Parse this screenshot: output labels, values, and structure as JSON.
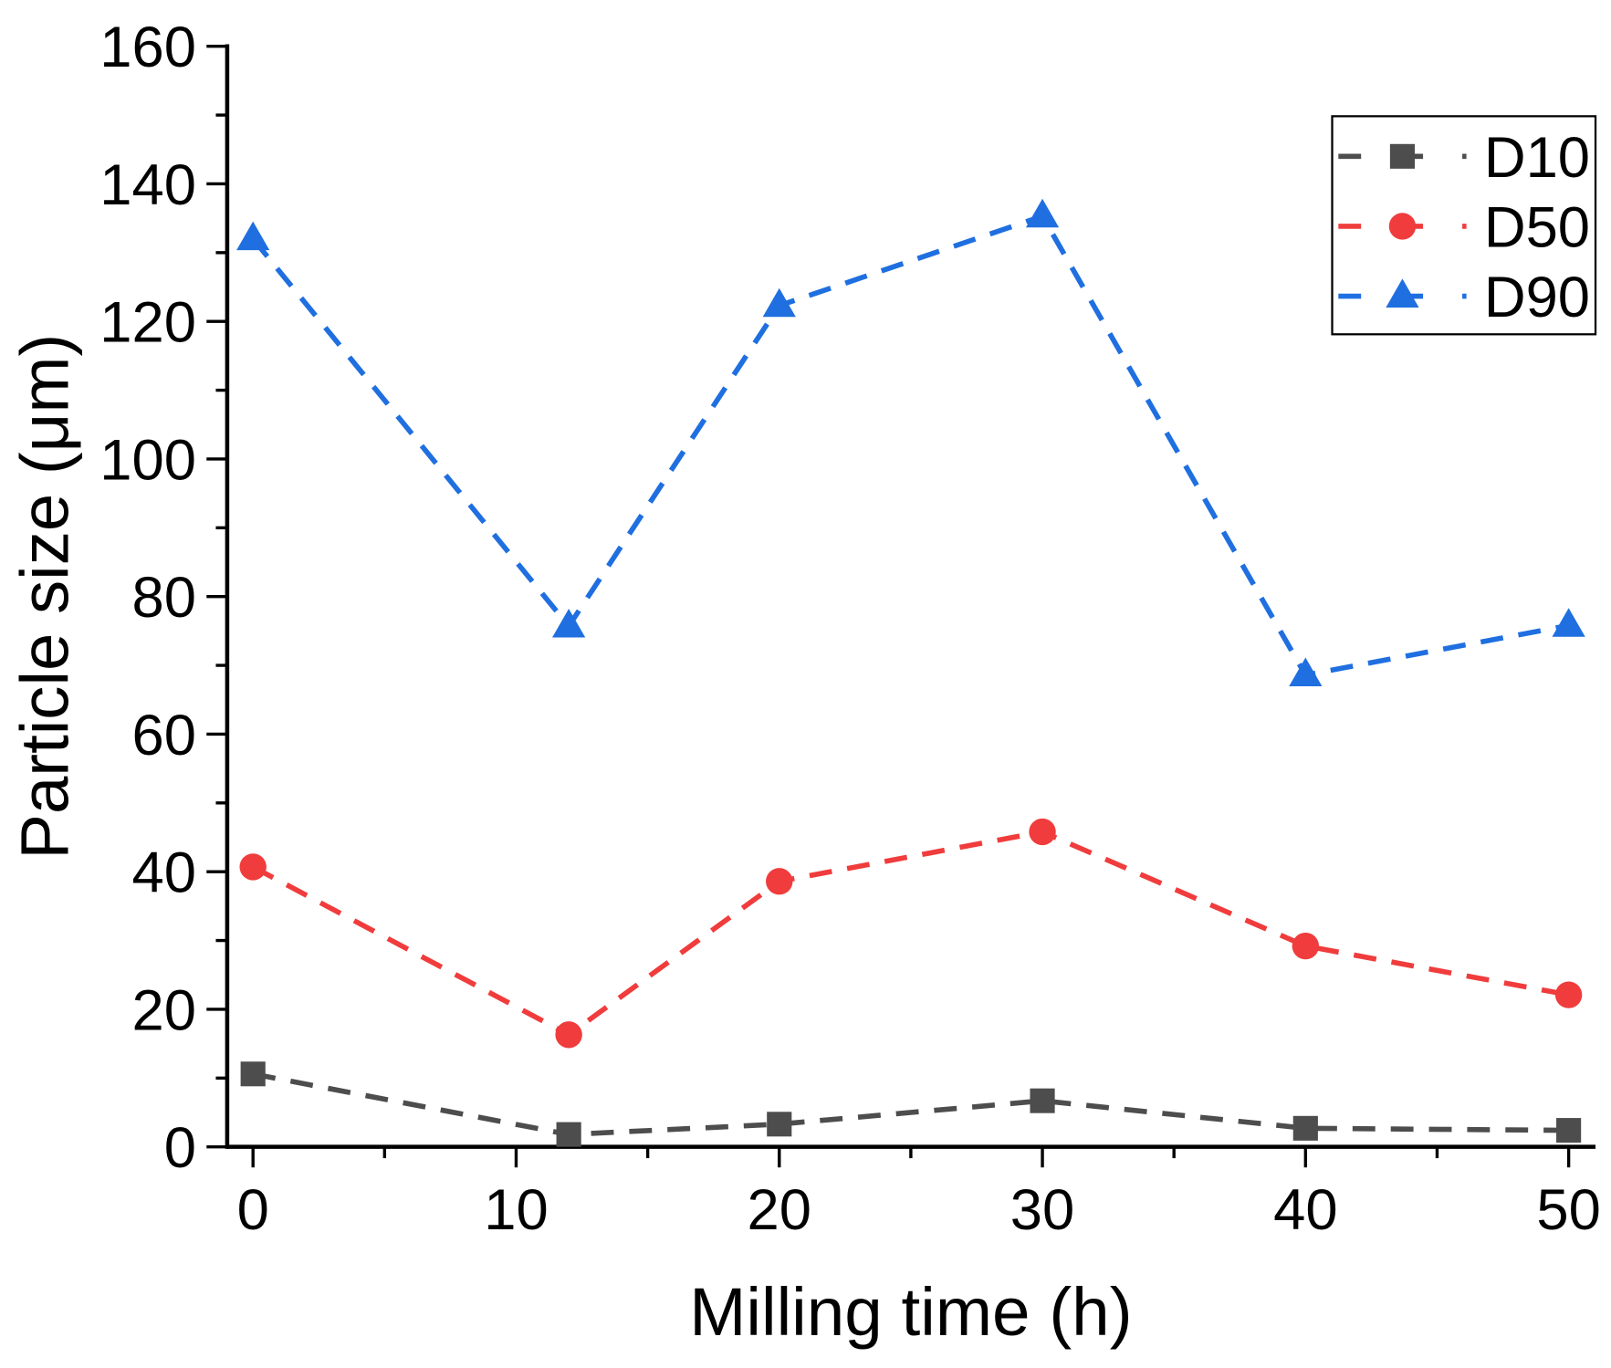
{
  "chart_data": {
    "type": "line",
    "title": "",
    "xlabel": "Milling time (h)",
    "ylabel": "Particle size (μm)",
    "xlim": [
      -1,
      51
    ],
    "ylim": [
      0,
      160
    ],
    "xticks": [
      0,
      10,
      20,
      30,
      40,
      50
    ],
    "yticks": [
      0,
      20,
      40,
      60,
      80,
      100,
      120,
      140,
      160
    ],
    "grid": false,
    "legend_position": "top-right",
    "x": [
      0,
      12,
      20,
      30,
      40,
      50
    ],
    "series": [
      {
        "name": "D10",
        "marker": "square",
        "color": "#4d4d4d",
        "values": [
          10.6,
          1.8,
          3.3,
          6.7,
          2.7,
          2.4
        ]
      },
      {
        "name": "D50",
        "marker": "circle",
        "color": "#f03c3c",
        "values": [
          40.7,
          16.3,
          38.6,
          45.8,
          29.2,
          22.1
        ]
      },
      {
        "name": "D90",
        "marker": "triangle",
        "color": "#1f6fe0",
        "values": [
          132.0,
          75.7,
          122.3,
          135.3,
          68.6,
          75.8
        ]
      }
    ]
  }
}
